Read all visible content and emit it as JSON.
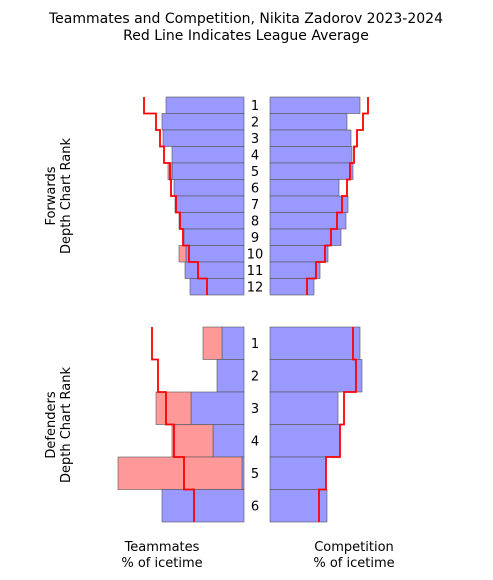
{
  "chart_data": {
    "type": "bar",
    "title_lines": [
      "Teammates and Competition, Nikita Zadorov 2023-2024",
      "Red Line Indicates League Average"
    ],
    "colors": {
      "blue": "#9999ff",
      "pink": "#ff9999",
      "league_line": "#ff0000",
      "edge": "#555555"
    },
    "footer": {
      "left": [
        "Teammates",
        "% of icetime"
      ],
      "right": [
        "Competition",
        "% of icetime"
      ]
    },
    "panels": [
      {
        "ylabel": [
          "Forwards",
          "Depth Chart Rank"
        ],
        "ranks": [
          "1",
          "2",
          "3",
          "4",
          "5",
          "6",
          "7",
          "8",
          "9",
          "10",
          "11",
          "12"
        ],
        "teammates": [
          {
            "player": 78,
            "team": 0,
            "league": 100
          },
          {
            "player": 82,
            "team": 0,
            "league": 88
          },
          {
            "player": 81,
            "team": 0,
            "league": 84
          },
          {
            "player": 72,
            "team": 0,
            "league": 80
          },
          {
            "player": 72,
            "team": 4,
            "league": 74
          },
          {
            "player": 70,
            "team": 0,
            "league": 73
          },
          {
            "player": 69,
            "team": 0,
            "league": 68
          },
          {
            "player": 65,
            "team": 0,
            "league": 64
          },
          {
            "player": 60,
            "team": 0,
            "league": 61
          },
          {
            "player": 58,
            "team": 7,
            "league": 55
          },
          {
            "player": 59,
            "team": 0,
            "league": 46
          },
          {
            "player": 54,
            "team": 0,
            "league": 37
          }
        ],
        "competition": [
          {
            "player": 90,
            "league": 98
          },
          {
            "player": 77,
            "league": 93
          },
          {
            "player": 81,
            "league": 87
          },
          {
            "player": 82,
            "league": 84
          },
          {
            "player": 83,
            "league": 80
          },
          {
            "player": 69,
            "league": 77
          },
          {
            "player": 78,
            "league": 72
          },
          {
            "player": 76,
            "league": 67
          },
          {
            "player": 71,
            "league": 61
          },
          {
            "player": 58,
            "league": 55
          },
          {
            "player": 50,
            "league": 46
          },
          {
            "player": 44,
            "league": 37
          }
        ]
      },
      {
        "ylabel": [
          "Defenders",
          "Depth Chart Rank"
        ],
        "ranks": [
          "1",
          "2",
          "3",
          "4",
          "5",
          "6"
        ],
        "teammates": [
          {
            "player": 22,
            "team": 19,
            "league": 92
          },
          {
            "player": 27,
            "team": 0,
            "league": 86
          },
          {
            "player": 53,
            "team": 35,
            "league": 78
          },
          {
            "player": 31,
            "team": 41,
            "league": 70
          },
          {
            "player": 2,
            "team": 124,
            "league": 60
          },
          {
            "player": 82,
            "team": 0,
            "league": 50
          }
        ],
        "competition": [
          {
            "player": 90,
            "league": 83
          },
          {
            "player": 92,
            "league": 86
          },
          {
            "player": 68,
            "league": 74
          },
          {
            "player": 70,
            "league": 70
          },
          {
            "player": 56,
            "league": 56
          },
          {
            "player": 57,
            "league": 49
          }
        ]
      }
    ]
  }
}
